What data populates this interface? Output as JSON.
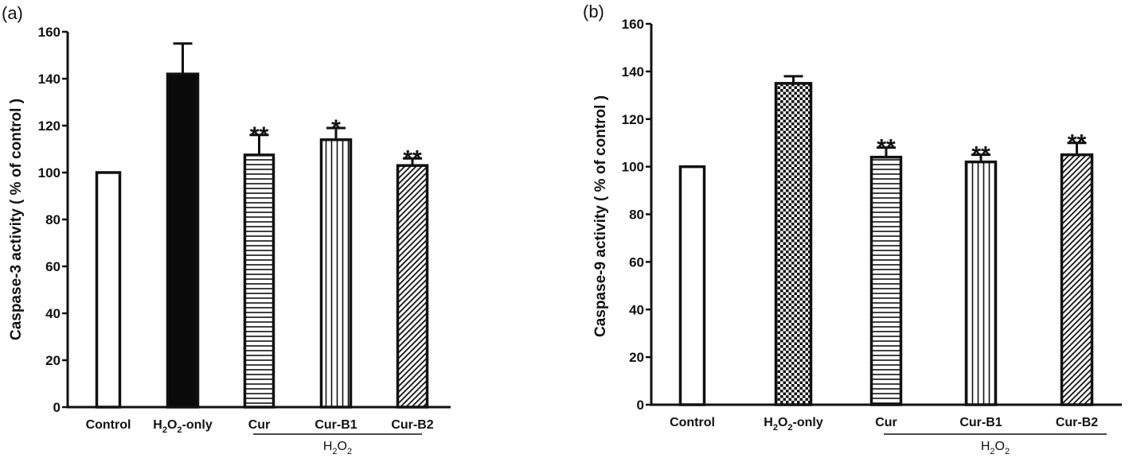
{
  "chart_data": [
    {
      "type": "bar",
      "panel_label": "(a)",
      "ylabel": "Caspase-3 activity ( % of control )",
      "ylim": [
        0,
        160
      ],
      "yticks": [
        "0",
        "20",
        "40",
        "60",
        "80",
        "100",
        "120",
        "140",
        "160"
      ],
      "categories": [
        "Control",
        "H2O2-only",
        "Cur",
        "Cur-B1",
        "Cur-B2"
      ],
      "category_labels": [
        {
          "main": "Control",
          "sub": "",
          "tail": ""
        },
        {
          "main": "H",
          "sub": "2",
          "mid": "O",
          "sub2": "2",
          "tail": "-only"
        },
        {
          "main": "Cur",
          "sub": "",
          "tail": ""
        },
        {
          "main": "Cur-B1",
          "sub": "",
          "tail": ""
        },
        {
          "main": "Cur-B2",
          "sub": "",
          "tail": ""
        }
      ],
      "values": [
        100,
        142,
        107.5,
        114,
        103
      ],
      "error_upper": [
        0,
        155,
        116,
        119,
        106
      ],
      "significance": [
        "",
        "",
        "**",
        "*",
        "**"
      ],
      "fills": [
        "white",
        "black",
        "horizontal",
        "vertical",
        "diagonal"
      ],
      "group_bracket": {
        "label_main": "H",
        "label_sub": "2",
        "label_mid": "O",
        "label_sub2": "2",
        "spans": [
          "Cur",
          "Cur-B2"
        ]
      }
    },
    {
      "type": "bar",
      "panel_label": "(b)",
      "ylabel": "Caspase-9 activity ( % of control )",
      "ylim": [
        0,
        160
      ],
      "yticks": [
        "0",
        "20",
        "40",
        "60",
        "80",
        "100",
        "120",
        "140",
        "160"
      ],
      "categories": [
        "Control",
        "H2O2-only",
        "Cur",
        "Cur-B1",
        "Cur-B2"
      ],
      "category_labels": [
        {
          "main": "Control",
          "sub": "",
          "tail": ""
        },
        {
          "main": "H",
          "sub": "2",
          "mid": "O",
          "sub2": "2",
          "tail": "-only"
        },
        {
          "main": "Cur",
          "sub": "",
          "tail": ""
        },
        {
          "main": "Cur-B1",
          "sub": "",
          "tail": ""
        },
        {
          "main": "Cur-B2",
          "sub": "",
          "tail": ""
        }
      ],
      "values": [
        100,
        135,
        104,
        102,
        105
      ],
      "error_upper": [
        0,
        138,
        108,
        105,
        110
      ],
      "significance": [
        "",
        "",
        "**",
        "**",
        "**"
      ],
      "fills": [
        "white",
        "checker",
        "horizontal",
        "vertical",
        "diagonal"
      ],
      "group_bracket": {
        "label_main": "H",
        "label_sub": "2",
        "label_mid": "O",
        "label_sub2": "2",
        "spans": [
          "Cur",
          "Cur-B2"
        ]
      }
    }
  ]
}
